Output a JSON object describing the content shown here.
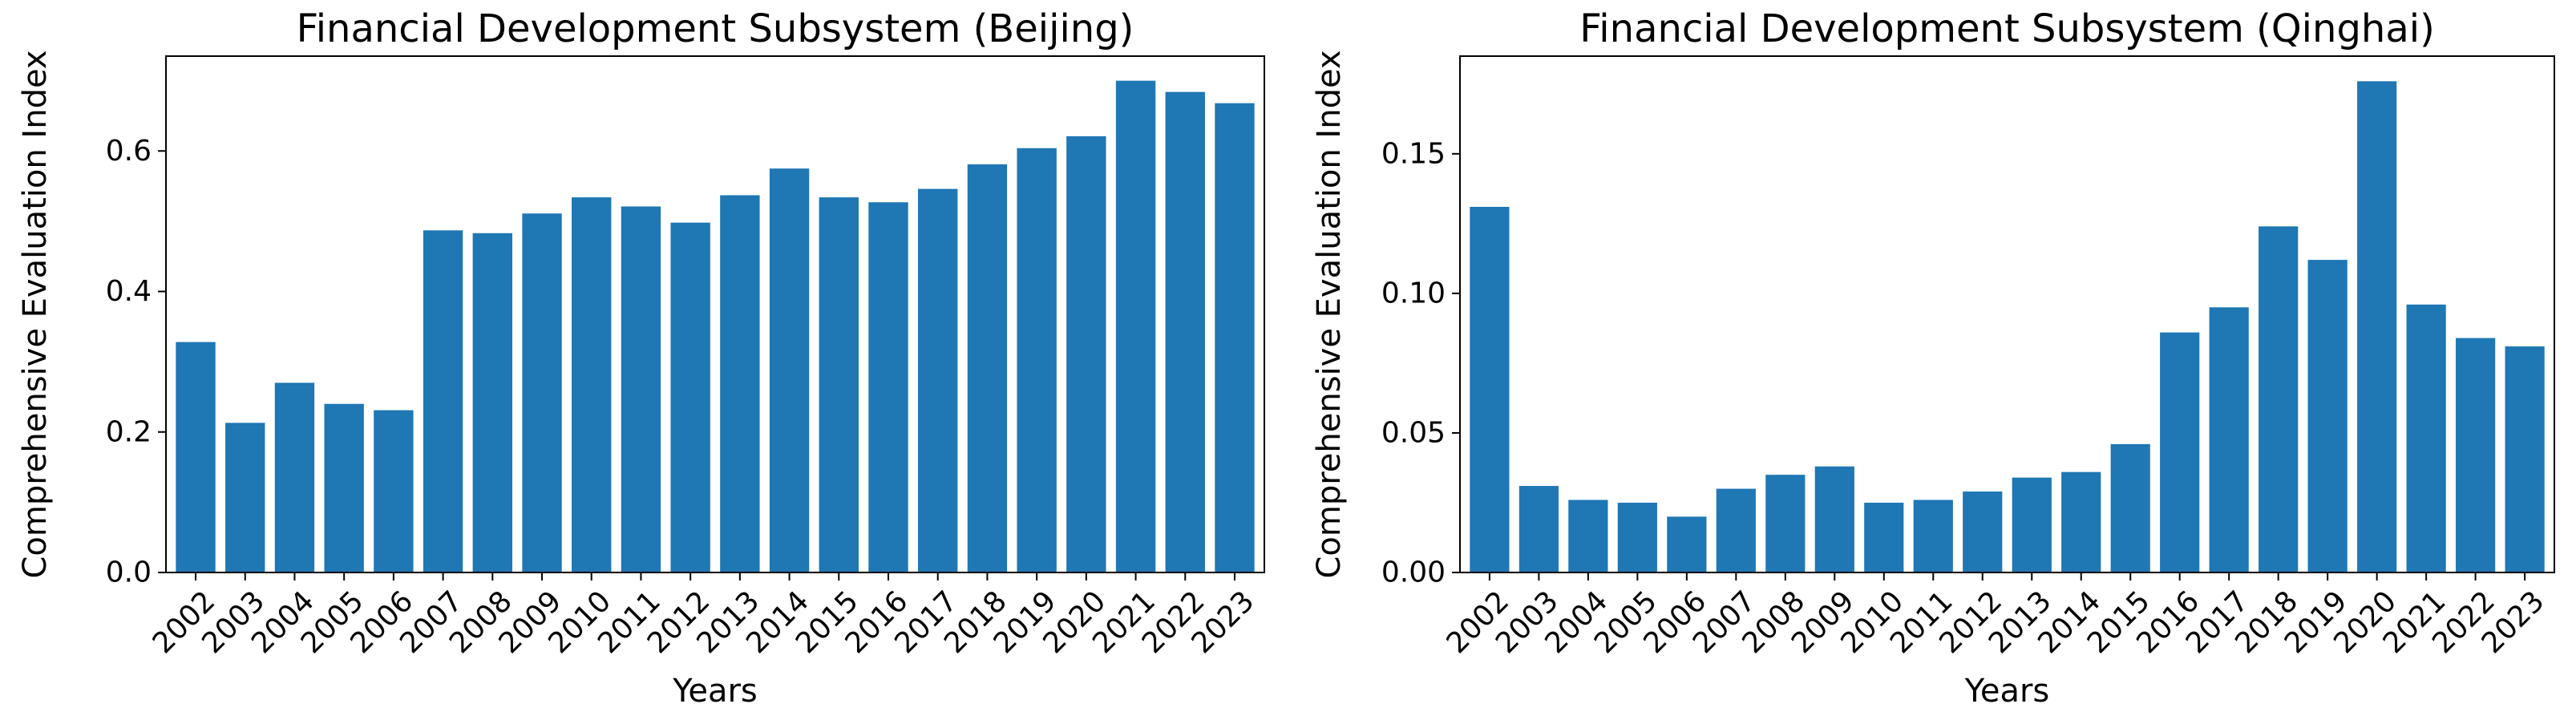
{
  "chart_data": [
    {
      "type": "bar",
      "title": "Financial Development Subsystem (Beijing)",
      "xlabel": "Years",
      "ylabel": "Comprehensive Evaluation Index",
      "categories": [
        "2002",
        "2003",
        "2004",
        "2005",
        "2006",
        "2007",
        "2008",
        "2009",
        "2010",
        "2011",
        "2012",
        "2013",
        "2014",
        "2015",
        "2016",
        "2017",
        "2018",
        "2019",
        "2020",
        "2021",
        "2022",
        "2023"
      ],
      "values": [
        0.328,
        0.213,
        0.27,
        0.24,
        0.231,
        0.487,
        0.483,
        0.511,
        0.534,
        0.521,
        0.498,
        0.537,
        0.575,
        0.534,
        0.527,
        0.546,
        0.581,
        0.604,
        0.621,
        0.7,
        0.684,
        0.668
      ],
      "ylim": [
        0,
        0.735
      ],
      "yticks": [
        0.0,
        0.2,
        0.4,
        0.6
      ],
      "ytick_labels": [
        "0.0",
        "0.2",
        "0.4",
        "0.6"
      ],
      "bar_color": "#1f77b4",
      "grid": false
    },
    {
      "type": "bar",
      "title": "Financial Development Subsystem (Qinghai)",
      "xlabel": "Years",
      "ylabel": "Comprehensive Evaluation Index",
      "categories": [
        "2002",
        "2003",
        "2004",
        "2005",
        "2006",
        "2007",
        "2008",
        "2009",
        "2010",
        "2011",
        "2012",
        "2013",
        "2014",
        "2015",
        "2016",
        "2017",
        "2018",
        "2019",
        "2020",
        "2021",
        "2022",
        "2023"
      ],
      "values": [
        0.131,
        0.031,
        0.026,
        0.025,
        0.02,
        0.03,
        0.035,
        0.038,
        0.025,
        0.026,
        0.029,
        0.034,
        0.036,
        0.046,
        0.086,
        0.095,
        0.124,
        0.112,
        0.176,
        0.096,
        0.084,
        0.081
      ],
      "ylim": [
        0,
        0.185
      ],
      "yticks": [
        0.0,
        0.05,
        0.1,
        0.15
      ],
      "ytick_labels": [
        "0.00",
        "0.05",
        "0.10",
        "0.15"
      ],
      "bar_color": "#1f77b4",
      "grid": false
    }
  ]
}
